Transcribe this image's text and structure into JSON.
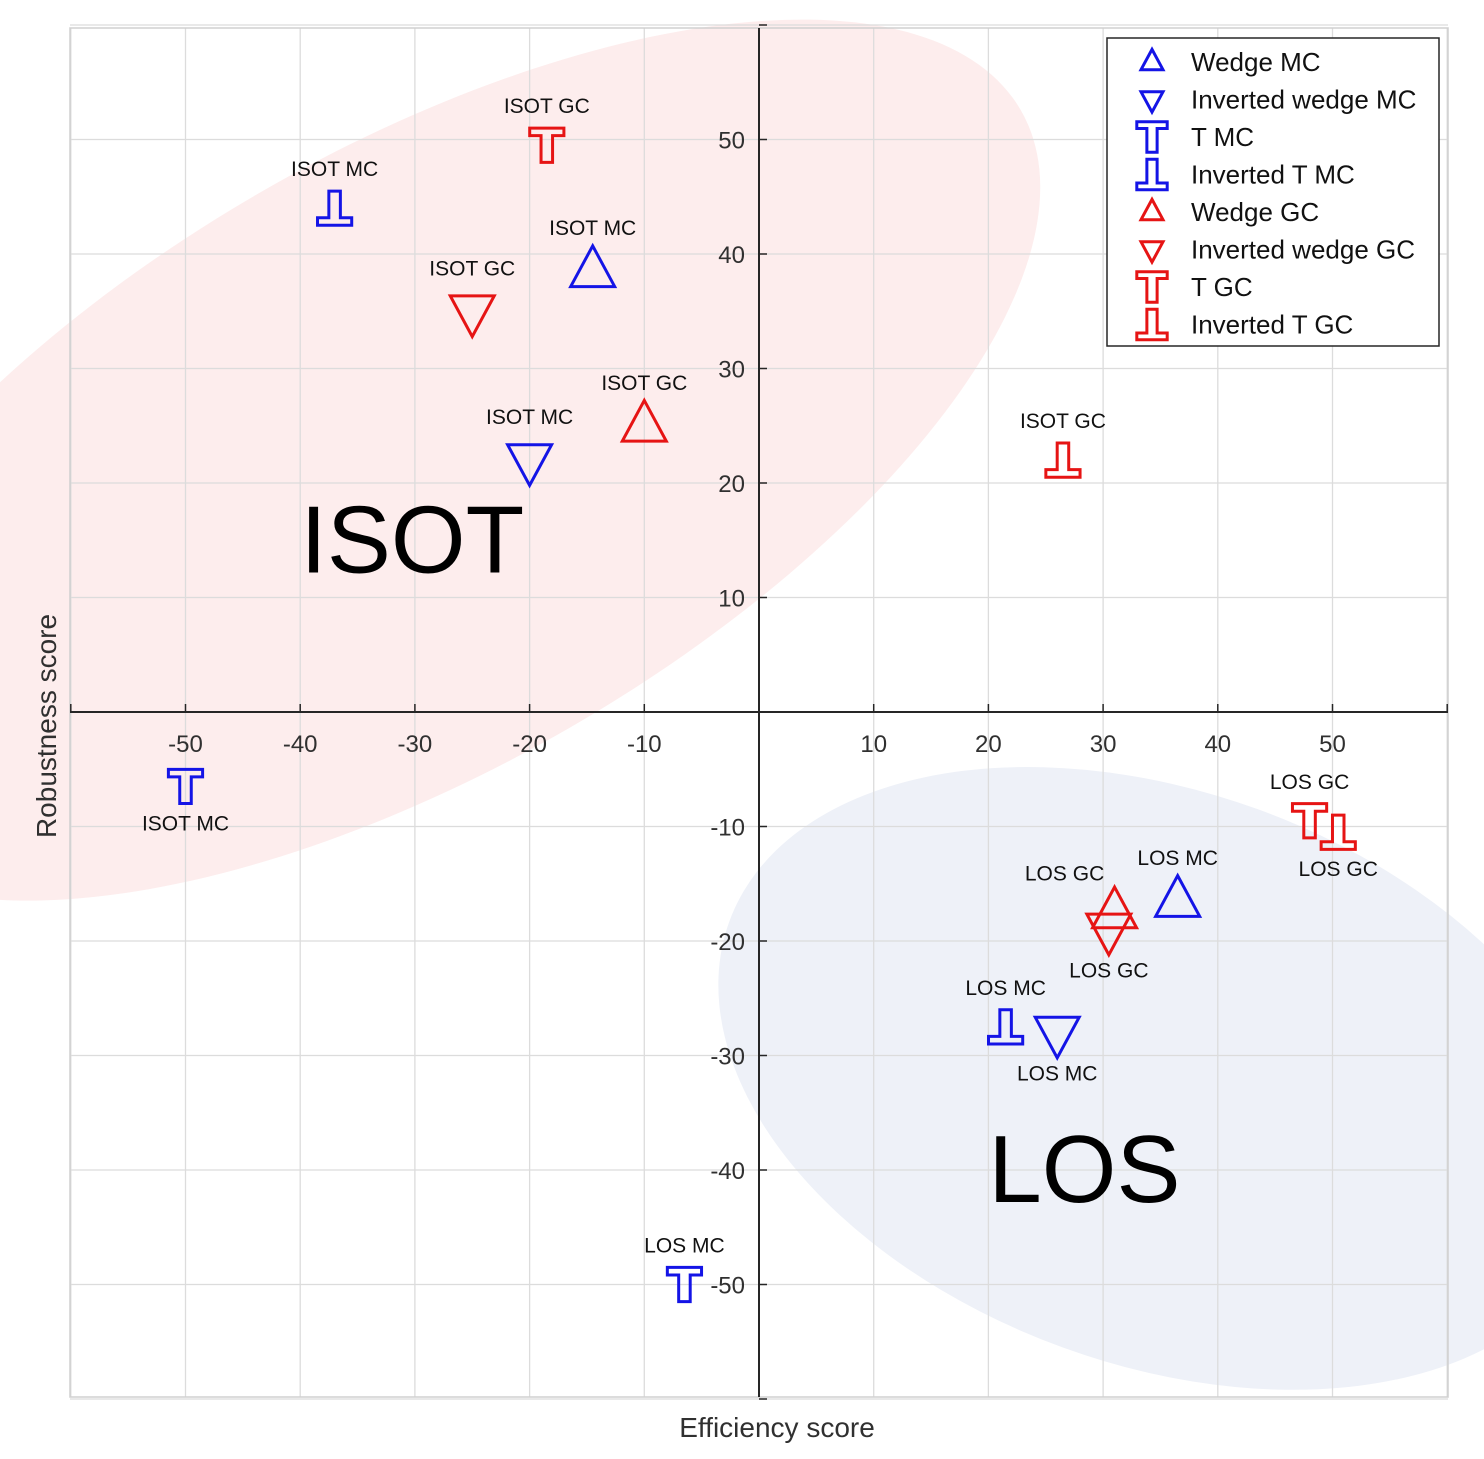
{
  "chart_data": {
    "type": "scatter",
    "xlabel": "Efficiency score",
    "ylabel": "Robustness score",
    "xlim": [
      -60,
      60
    ],
    "ylim": [
      -60,
      60
    ],
    "xticks": [
      -50,
      -40,
      -30,
      -20,
      -10,
      10,
      20,
      30,
      40,
      50
    ],
    "yticks": [
      50,
      40,
      30,
      20,
      10,
      -10,
      -20,
      -30,
      -40,
      -50
    ],
    "grid": true,
    "legend_position": "top-right",
    "colors": {
      "MC": "#1414e6",
      "GC": "#e61414",
      "isot_region": "#fdeded",
      "los_region": "#eef1f8"
    },
    "clusters": [
      {
        "label": "ISOT",
        "cx": -30,
        "cy": 22,
        "rx": 61,
        "ry": 27,
        "rotation_deg": -30,
        "fill_key": "isot_region",
        "label_at": [
          -40,
          15
        ]
      },
      {
        "label": "LOS",
        "cx": 35,
        "cy": -32,
        "rx": 40,
        "ry": 25,
        "rotation_deg": 20,
        "fill_key": "los_region",
        "label_at": [
          20,
          -40
        ]
      }
    ],
    "series": [
      {
        "name": "Wedge MC",
        "marker": "wedge",
        "color": "#1414e6",
        "points": [
          {
            "x": -14.5,
            "y": 38.5,
            "label": "ISOT MC",
            "label_pos": "above"
          },
          {
            "x": 36.5,
            "y": -16.5,
            "label": "LOS MC",
            "label_pos": "above"
          }
        ]
      },
      {
        "name": "Inverted wedge MC",
        "marker": "inverted-wedge",
        "color": "#1414e6",
        "points": [
          {
            "x": -20,
            "y": 22,
            "label": "ISOT MC",
            "label_pos": "above"
          },
          {
            "x": 26,
            "y": -28,
            "label": "LOS MC",
            "label_pos": "below"
          }
        ]
      },
      {
        "name": "T MC",
        "marker": "t",
        "color": "#1414e6",
        "points": [
          {
            "x": -50,
            "y": -6.5,
            "label": "ISOT MC",
            "label_pos": "below"
          },
          {
            "x": -6.5,
            "y": -50,
            "label": "LOS MC",
            "label_pos": "above"
          }
        ]
      },
      {
        "name": "Inverted T MC",
        "marker": "inverted-t",
        "color": "#1414e6",
        "points": [
          {
            "x": -37,
            "y": 44,
            "label": "ISOT MC",
            "label_pos": "above"
          },
          {
            "x": 21.5,
            "y": -27.5,
            "label": "LOS MC",
            "label_pos": "above"
          }
        ]
      },
      {
        "name": "Wedge GC",
        "marker": "wedge",
        "color": "#e61414",
        "points": [
          {
            "x": -10,
            "y": 25,
            "label": "ISOT GC",
            "label_pos": "above"
          },
          {
            "x": 31,
            "y": -17.5,
            "label": "LOS GC",
            "label_pos": "above-left"
          }
        ]
      },
      {
        "name": "Inverted wedge GC",
        "marker": "inverted-wedge",
        "color": "#e61414",
        "points": [
          {
            "x": -25,
            "y": 35,
            "label": "ISOT GC",
            "label_pos": "above"
          },
          {
            "x": 30.5,
            "y": -19,
            "label": "LOS GC",
            "label_pos": "below"
          }
        ]
      },
      {
        "name": "T GC",
        "marker": "t",
        "color": "#e61414",
        "points": [
          {
            "x": -18.5,
            "y": 49.5,
            "label": "ISOT GC",
            "label_pos": "above"
          },
          {
            "x": 48,
            "y": -9.5,
            "label": "LOS GC",
            "label_pos": "above"
          }
        ]
      },
      {
        "name": "Inverted T GC",
        "marker": "inverted-t",
        "color": "#e61414",
        "points": [
          {
            "x": 26.5,
            "y": 22,
            "label": "ISOT GC",
            "label_pos": "above"
          },
          {
            "x": 50.5,
            "y": -10.5,
            "label": "LOS GC",
            "label_pos": "below"
          }
        ]
      }
    ]
  }
}
